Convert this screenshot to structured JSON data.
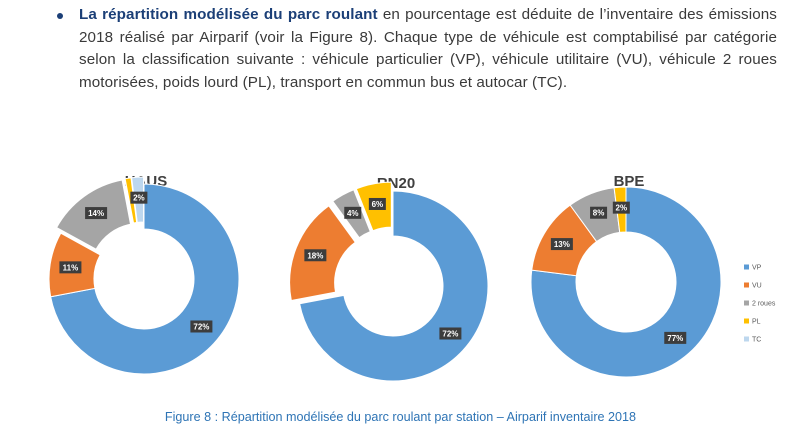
{
  "paragraph": {
    "bold_lead": "La répartition modélisée du parc roulant",
    "text": " en pourcentage est déduite de l’inventaire des émissions 2018 réalisé par Airparif (voir la Figure 8). Chaque type de véhicule est comptabilisé par catégorie selon la classification suivante : véhicule particulier (VP), véhicule utilitaire (VU), véhicule 2 roues motorisées, poids lourd (PL), transport en commun bus et autocar (TC)."
  },
  "colors": {
    "VP": "#5b9bd5",
    "VU": "#ed7d31",
    "2 roues": "#a5a5a5",
    "PL": "#ffc000",
    "TC": "#bdd7ee"
  },
  "chart_data": [
    {
      "type": "pie",
      "title": "HAUS",
      "categories": [
        "VP",
        "VU",
        "2 roues",
        "PL",
        "TC"
      ],
      "values": [
        72,
        11,
        14,
        1,
        2
      ],
      "data_labels": [
        "72%",
        "11%",
        "14%",
        "",
        "2%"
      ],
      "legend": "none"
    },
    {
      "type": "pie",
      "title": "RN20",
      "categories": [
        "VP",
        "VU",
        "2 roues",
        "PL",
        "TC"
      ],
      "values": [
        72,
        18,
        4,
        6,
        0
      ],
      "data_labels": [
        "72%",
        "18%",
        "4%",
        "6%",
        ""
      ],
      "legend": "none"
    },
    {
      "type": "pie",
      "title": "BPE",
      "categories": [
        "VP",
        "VU",
        "2 roues",
        "PL",
        "TC"
      ],
      "values": [
        77,
        13,
        8,
        2,
        0
      ],
      "data_labels": [
        "77%",
        "13%",
        "8%",
        "2%",
        ""
      ],
      "legend": "right"
    }
  ],
  "legend_items": [
    "VP",
    "VU",
    "2 roues",
    "PL",
    "TC"
  ],
  "caption": "Figure 8 : Répartition modélisée du parc roulant par station – Airparif inventaire 2018"
}
